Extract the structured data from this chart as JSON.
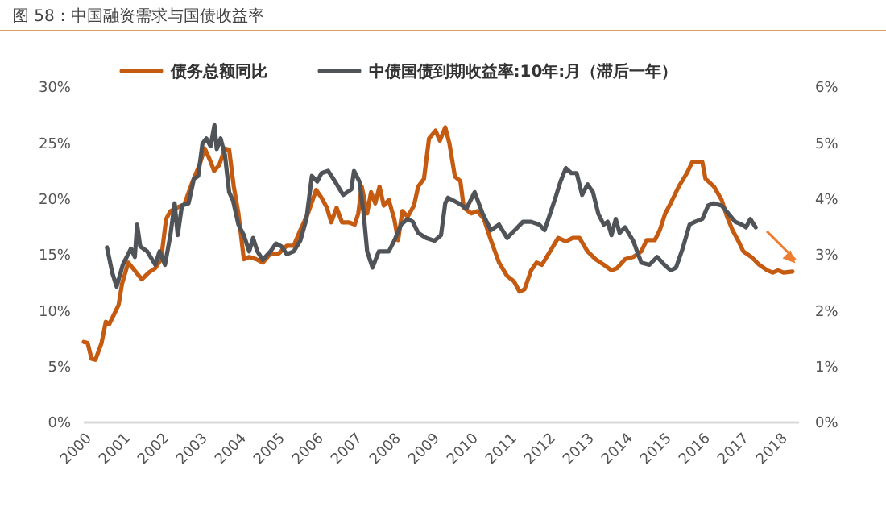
{
  "chart_data": {
    "type": "line",
    "title": "图 58：中国融资需求与国债收益率",
    "legend": "top",
    "grid": false,
    "xlim": [
      2000,
      2018.5
    ],
    "xticks": [
      2000,
      2001,
      2002,
      2003,
      2004,
      2005,
      2006,
      2007,
      2008,
      2009,
      2010,
      2011,
      2012,
      2013,
      2014,
      2015,
      2016,
      2017,
      2018
    ],
    "ylim": [
      0,
      30
    ],
    "yticks": [
      {
        "value": 0,
        "label": "0%"
      },
      {
        "value": 5,
        "label": "5%"
      },
      {
        "value": 10,
        "label": "10%"
      },
      {
        "value": 15,
        "label": "15%"
      },
      {
        "value": 20,
        "label": "20%"
      },
      {
        "value": 25,
        "label": "25%"
      },
      {
        "value": 30,
        "label": "30%"
      }
    ],
    "y2lim": [
      0,
      6
    ],
    "y2ticks": [
      {
        "value": 0,
        "label": "0%"
      },
      {
        "value": 1,
        "label": "1%"
      },
      {
        "value": 2,
        "label": "2%"
      },
      {
        "value": 3,
        "label": "3%"
      },
      {
        "value": 4,
        "label": "4%"
      },
      {
        "value": 5,
        "label": "5%"
      },
      {
        "value": 6,
        "label": "6%"
      }
    ],
    "series": [
      {
        "name": "债务总额同比",
        "color": "#c55a11",
        "x": [
          2000.0,
          2000.1,
          2000.2,
          2000.3,
          2000.46,
          2000.57,
          2000.66,
          2000.76,
          2000.9,
          2000.99,
          2001.15,
          2001.36,
          2001.5,
          2001.68,
          2001.85,
          2002.0,
          2002.13,
          2002.24,
          2002.4,
          2002.6,
          2002.82,
          2002.99,
          2003.13,
          2003.26,
          2003.37,
          2003.5,
          2003.65,
          2003.76,
          2003.88,
          2004.0,
          2004.14,
          2004.28,
          2004.46,
          2004.63,
          2004.83,
          2005.04,
          2005.25,
          2005.43,
          2005.6,
          2005.8,
          2006.01,
          2006.15,
          2006.29,
          2006.4,
          2006.54,
          2006.68,
          2006.85,
          2007.01,
          2007.1,
          2007.19,
          2007.33,
          2007.43,
          2007.54,
          2007.65,
          2007.76,
          2007.89,
          2008.03,
          2008.13,
          2008.24,
          2008.38,
          2008.54,
          2008.65,
          2008.8,
          2008.93,
          2009.1,
          2009.21,
          2009.35,
          2009.46,
          2009.6,
          2009.74,
          2009.83,
          2010.02,
          2010.18,
          2010.35,
          2010.53,
          2010.74,
          2010.95,
          2011.13,
          2011.27,
          2011.4,
          2011.57,
          2011.71,
          2011.85,
          2012.06,
          2012.27,
          2012.47,
          2012.65,
          2012.82,
          2013.03,
          2013.24,
          2013.45,
          2013.65,
          2013.79,
          2014.0,
          2014.21,
          2014.42,
          2014.56,
          2014.77,
          2014.9,
          2015.04,
          2015.18,
          2015.39,
          2015.6,
          2015.74,
          2015.88,
          2016.0,
          2016.08,
          2016.3,
          2016.5,
          2016.64,
          2016.78,
          2016.92,
          2017.06,
          2017.27,
          2017.47,
          2017.68,
          2017.82,
          2017.96,
          2018.1,
          2018.33
        ],
        "values": [
          7.2,
          7.1,
          5.7,
          5.6,
          7.1,
          9.0,
          8.8,
          9.5,
          10.5,
          12.4,
          14.3,
          13.4,
          12.8,
          13.4,
          13.8,
          14.6,
          18.2,
          18.9,
          19.2,
          19.5,
          21.6,
          23.0,
          24.5,
          23.5,
          22.5,
          23.0,
          24.5,
          24.4,
          21.1,
          18.7,
          14.6,
          14.8,
          14.6,
          14.3,
          15.1,
          15.1,
          15.8,
          15.8,
          17.2,
          18.7,
          20.8,
          20.1,
          19.2,
          17.9,
          19.2,
          17.9,
          17.9,
          17.7,
          18.7,
          21.1,
          18.7,
          20.6,
          19.6,
          21.1,
          19.4,
          19.9,
          18.2,
          16.3,
          18.9,
          18.4,
          19.4,
          21.1,
          21.8,
          25.4,
          26.1,
          25.2,
          26.4,
          24.9,
          22.0,
          21.6,
          19.2,
          18.7,
          18.9,
          18.2,
          16.3,
          14.3,
          13.1,
          12.6,
          11.7,
          11.9,
          13.6,
          14.3,
          14.1,
          15.3,
          16.5,
          16.2,
          16.5,
          16.5,
          15.3,
          14.6,
          14.1,
          13.6,
          13.8,
          14.6,
          14.8,
          15.3,
          16.3,
          16.3,
          17.2,
          18.7,
          19.6,
          21.1,
          22.3,
          23.3,
          23.3,
          23.3,
          21.8,
          21.1,
          19.9,
          18.4,
          17.2,
          16.3,
          15.3,
          14.8,
          14.1,
          13.6,
          13.4,
          13.6,
          13.4,
          13.5
        ]
      },
      {
        "name": "中债国债到期收益率:10年:月（滞后一年）",
        "color": "#505458",
        "axis": "y2",
        "x": [
          2000.6,
          2000.74,
          2000.85,
          2001.01,
          2001.22,
          2001.32,
          2001.38,
          2001.46,
          2001.64,
          2001.85,
          2001.96,
          2002.1,
          2002.24,
          2002.35,
          2002.43,
          2002.54,
          2002.71,
          2002.85,
          2002.96,
          2003.07,
          2003.17,
          2003.28,
          2003.38,
          2003.44,
          2003.54,
          2003.65,
          2003.76,
          2003.86,
          2004.0,
          2004.14,
          2004.28,
          2004.38,
          2004.49,
          2004.63,
          2004.83,
          2004.97,
          2005.11,
          2005.25,
          2005.43,
          2005.6,
          2005.76,
          2005.9,
          2006.04,
          2006.15,
          2006.32,
          2006.5,
          2006.71,
          2006.92,
          2006.99,
          2007.13,
          2007.24,
          2007.33,
          2007.47,
          2007.63,
          2007.75,
          2007.89,
          2008.03,
          2008.21,
          2008.38,
          2008.51,
          2008.65,
          2008.86,
          2009.07,
          2009.24,
          2009.35,
          2009.42,
          2009.7,
          2009.9,
          2010.11,
          2010.32,
          2010.53,
          2010.74,
          2010.95,
          2011.15,
          2011.36,
          2011.57,
          2011.78,
          2011.92,
          2012.06,
          2012.2,
          2012.33,
          2012.47,
          2012.61,
          2012.75,
          2012.89,
          2013.03,
          2013.17,
          2013.31,
          2013.45,
          2013.55,
          2013.65,
          2013.76,
          2013.86,
          2014.0,
          2014.21,
          2014.42,
          2014.63,
          2014.83,
          2015.02,
          2015.18,
          2015.32,
          2015.49,
          2015.67,
          2015.81,
          2016.0,
          2016.15,
          2016.29,
          2016.5,
          2016.68,
          2016.85,
          2017.02,
          2017.13,
          2017.24,
          2017.38
        ],
        "values": [
          3.13,
          2.67,
          2.43,
          2.82,
          3.11,
          2.96,
          3.54,
          3.15,
          3.06,
          2.82,
          3.06,
          2.82,
          3.35,
          3.92,
          3.35,
          3.88,
          3.92,
          4.36,
          4.41,
          4.99,
          5.08,
          4.94,
          5.32,
          4.89,
          5.08,
          4.79,
          4.12,
          3.97,
          3.54,
          3.35,
          3.06,
          3.3,
          3.06,
          2.91,
          3.06,
          3.2,
          3.15,
          3.01,
          3.06,
          3.25,
          3.64,
          4.41,
          4.31,
          4.46,
          4.5,
          4.31,
          4.07,
          4.17,
          4.5,
          4.31,
          3.73,
          3.06,
          2.77,
          3.06,
          3.06,
          3.06,
          3.25,
          3.54,
          3.64,
          3.59,
          3.39,
          3.3,
          3.25,
          3.35,
          3.92,
          4.02,
          3.92,
          3.83,
          4.12,
          3.73,
          3.44,
          3.54,
          3.3,
          3.44,
          3.59,
          3.59,
          3.54,
          3.44,
          3.73,
          4.02,
          4.31,
          4.55,
          4.46,
          4.46,
          4.07,
          4.26,
          4.12,
          3.73,
          3.54,
          3.59,
          3.35,
          3.64,
          3.39,
          3.49,
          3.25,
          2.86,
          2.82,
          2.96,
          2.82,
          2.72,
          2.77,
          3.11,
          3.54,
          3.59,
          3.64,
          3.88,
          3.92,
          3.88,
          3.73,
          3.59,
          3.54,
          3.49,
          3.64,
          3.49
        ]
      }
    ]
  }
}
